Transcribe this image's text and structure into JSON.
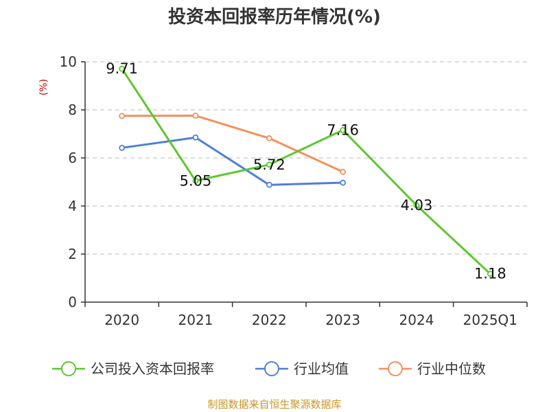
{
  "chart_data": {
    "type": "line",
    "title": "投资本回报率历年情况(%)",
    "ylabel": "(%)",
    "xlabel": "",
    "categories": [
      "2020",
      "2021",
      "2022",
      "2023",
      "2024",
      "2025Q1"
    ],
    "ylim": [
      0,
      10
    ],
    "yticks": [
      0,
      2,
      4,
      6,
      8,
      10
    ],
    "grid": true,
    "legend_position": "bottom",
    "series": [
      {
        "name": "公司投入资本回报率",
        "color": "#5cc72e",
        "values": [
          9.71,
          5.05,
          5.72,
          7.16,
          4.03,
          1.18
        ],
        "labels": [
          "9.71",
          "5.05",
          "5.72",
          "7.16",
          "4.03",
          "1.18"
        ]
      },
      {
        "name": "行业均值",
        "color": "#4f7fd6",
        "values": [
          6.42,
          6.85,
          4.88,
          4.97,
          null,
          null
        ]
      },
      {
        "name": "行业中位数",
        "color": "#f59058",
        "values": [
          7.75,
          7.76,
          6.82,
          5.42,
          null,
          null
        ]
      }
    ],
    "source": "制图数据来自恒生聚源数据库"
  }
}
